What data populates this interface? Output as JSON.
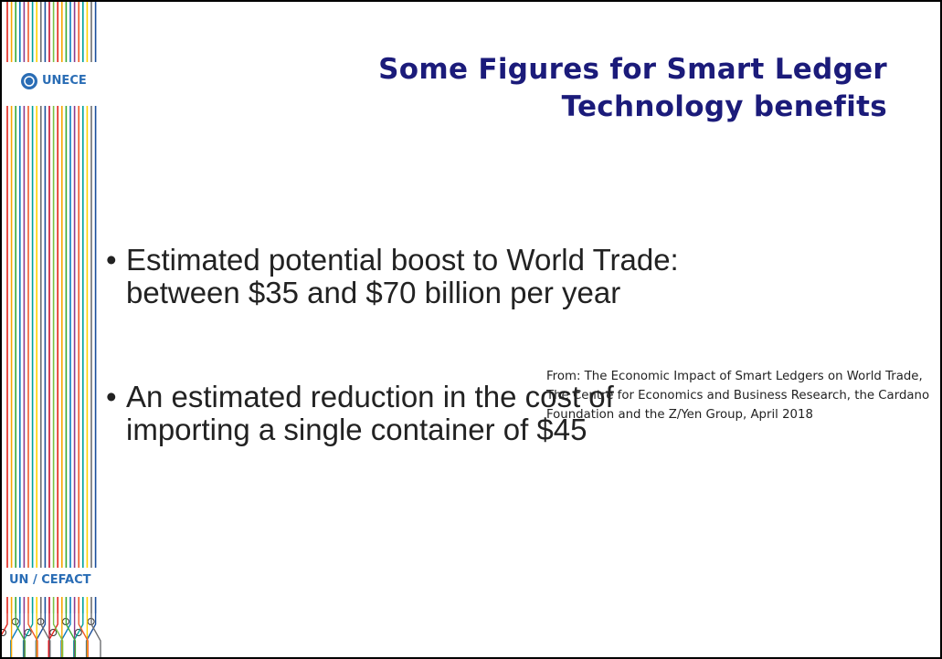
{
  "sidebar": {
    "logo": "UNECE",
    "footer": "UN / CEFACT"
  },
  "title": [
    "Some Figures for Smart Ledger",
    "Technology benefits"
  ],
  "bullets": [
    [
      "Estimated potential boost to World Trade:",
      "between $35 and $70 billion per year"
    ],
    [
      "An estimated reduction in the cost of",
      "importing a single container of $45"
    ]
  ],
  "source": [
    "From: The Economic Impact of Smart Ledgers on World Trade,",
    "The Centre for Economics and Business Research, the Cardano",
    "Foundation and the Z/Yen Group, April 2018"
  ]
}
